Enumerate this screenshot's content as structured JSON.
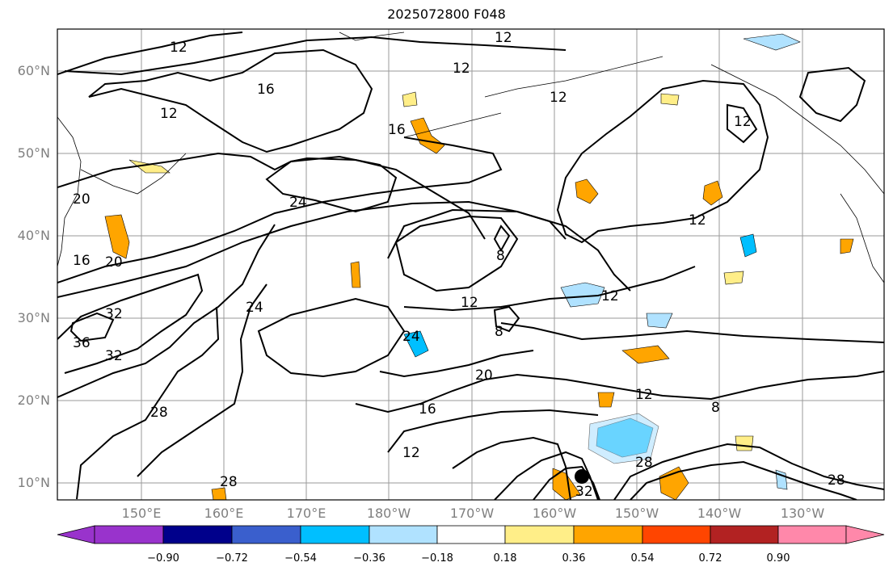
{
  "title": "2025072800 F048",
  "lat_labels": [
    "60°N",
    "50°N",
    "40°N",
    "30°N",
    "20°N",
    "10°N"
  ],
  "lon_labels": [
    "150°E",
    "160°E",
    "170°E",
    "180°W",
    "170°W",
    "160°W",
    "150°W",
    "140°W",
    "130°W"
  ],
  "contour_labels": [
    "12",
    "12",
    "12",
    "16",
    "12",
    "12",
    "16",
    "24",
    "20",
    "16",
    "20",
    "32",
    "36",
    "32",
    "24",
    "8",
    "12",
    "12",
    "12",
    "24",
    "20",
    "16",
    "12",
    "28",
    "28",
    "8",
    "12",
    "28",
    "32",
    "28",
    "8",
    "12"
  ],
  "colorbar": {
    "ticks": [
      "−0.90",
      "−0.72",
      "−0.54",
      "−0.36",
      "−0.18",
      "0.18",
      "0.36",
      "0.54",
      "0.72",
      "0.90"
    ],
    "colors": [
      "#9933cc",
      "#00008b",
      "#3a5fcd",
      "#00bfff",
      "#b0e2ff",
      "#ffffff",
      "#ffee88",
      "#ffa500",
      "#ff4500",
      "#b22222",
      "#ff88aa"
    ]
  }
}
